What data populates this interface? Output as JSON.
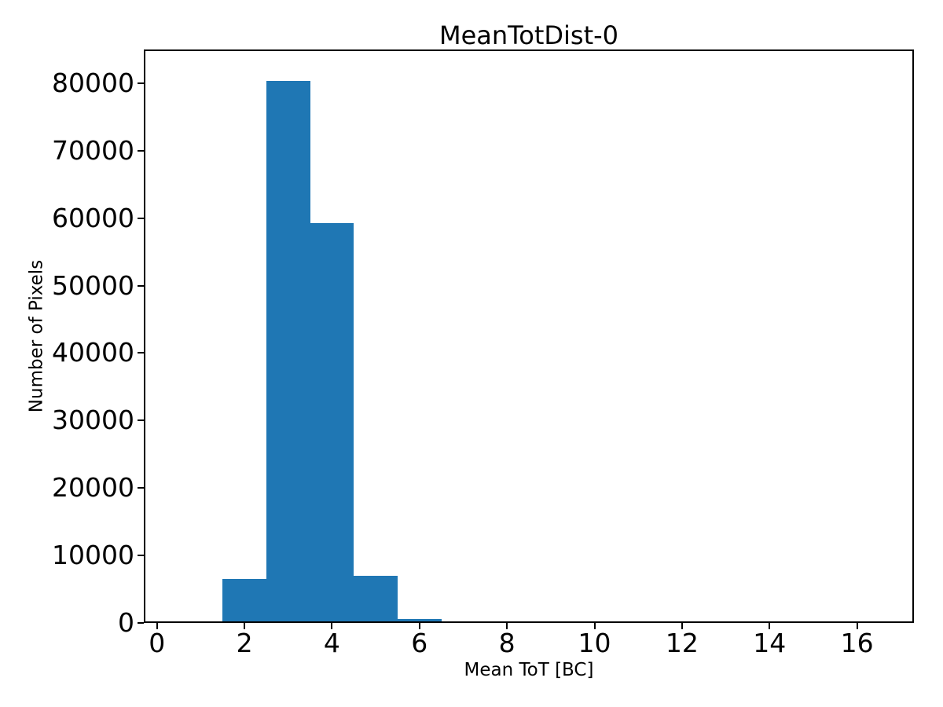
{
  "figure": {
    "background": "#ffffff"
  },
  "chart_data": {
    "type": "bar",
    "subtype": "histogram",
    "title": "MeanTotDist-0",
    "xlabel": "Mean ToT [BC]",
    "ylabel": "Number of Pixels",
    "bin_edges": [
      1.5,
      2.5,
      3.5,
      4.5,
      5.5,
      6.5
    ],
    "counts": [
      6500,
      80400,
      59300,
      7000,
      550
    ],
    "bin_centers": [
      2,
      3,
      4,
      5,
      6
    ],
    "x_ticks": [
      0,
      2,
      4,
      6,
      8,
      10,
      12,
      14,
      16
    ],
    "y_ticks": [
      0,
      10000,
      20000,
      30000,
      40000,
      50000,
      60000,
      70000,
      80000
    ],
    "xlim": [
      -0.3,
      17.3
    ],
    "ylim": [
      0,
      85000
    ],
    "grid": false,
    "legend": "none",
    "bar_color": "#1f77b4",
    "spine_color": "#000000"
  }
}
